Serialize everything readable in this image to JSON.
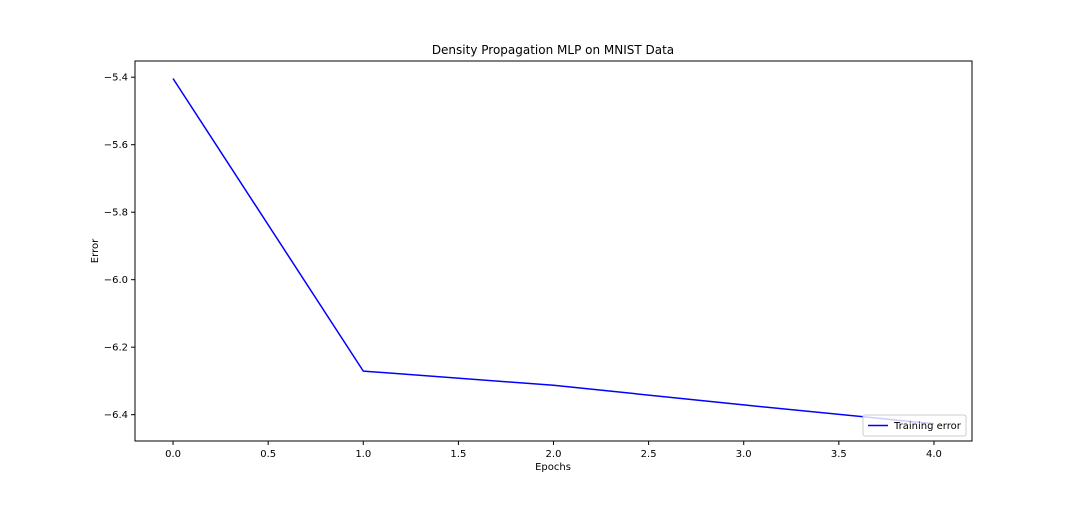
{
  "chart_data": {
    "type": "line",
    "title": "Density Propagation MLP on MNIST Data",
    "xlabel": "Epochs",
    "ylabel": "Error",
    "xlim": [
      -0.2,
      4.2
    ],
    "ylim": [
      -6.478,
      -5.352
    ],
    "x_ticks": [
      0.0,
      0.5,
      1.0,
      1.5,
      2.0,
      2.5,
      3.0,
      3.5,
      4.0
    ],
    "x_tick_labels": [
      "0.0",
      "0.5",
      "1.0",
      "1.5",
      "2.0",
      "2.5",
      "3.0",
      "3.5",
      "4.0"
    ],
    "y_ticks": [
      -5.4,
      -5.6,
      -5.8,
      -6.0,
      -6.2,
      -6.4
    ],
    "y_tick_labels": [
      "−5.4",
      "−5.6",
      "−5.8",
      "−6.0",
      "−6.2",
      "−6.4"
    ],
    "grid": false,
    "legend_position": "lower-right",
    "series": [
      {
        "name": "Training error",
        "color": "#0000ff",
        "x": [
          0,
          1,
          2,
          3,
          4
        ],
        "y": [
          -5.404,
          -6.271,
          -6.313,
          -6.371,
          -6.427
        ]
      }
    ]
  }
}
